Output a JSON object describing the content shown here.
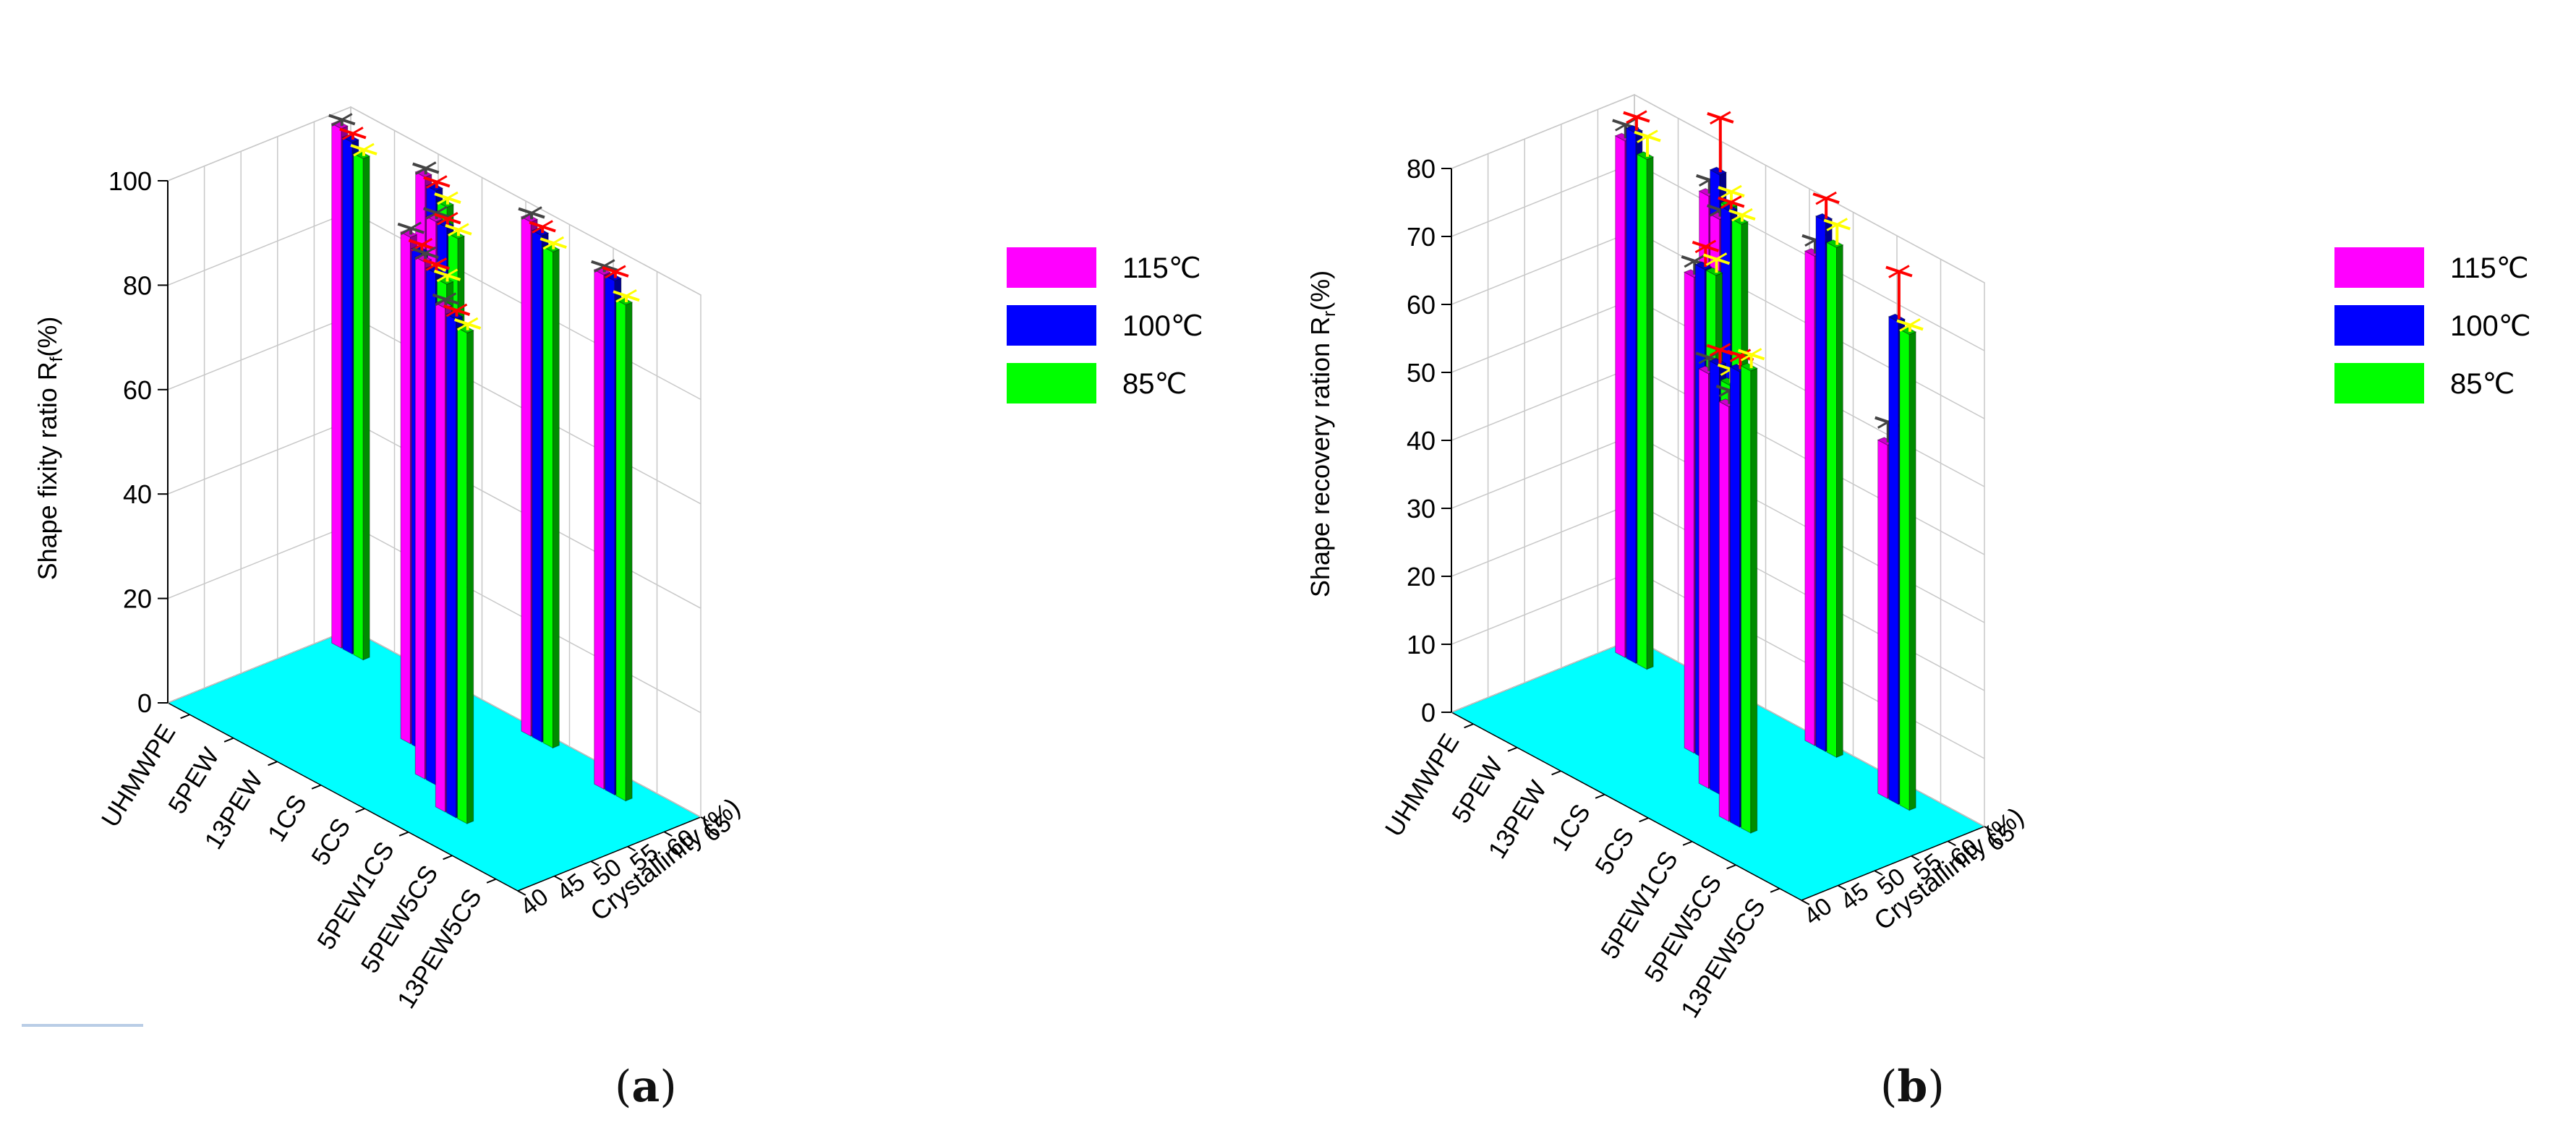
{
  "colors": {
    "floor": "#00ffff",
    "grid": "#c8c8c8",
    "axis": "#000000",
    "err_115": "#444444",
    "err_100": "#ff0000",
    "err_85": "#ffff00"
  },
  "chart_data": [
    {
      "type": "bar3d",
      "caption_label": "a",
      "zlabel": "Shape fixity ratio R_f(%)",
      "zlabel_main": "Shape fixity ratio R",
      "zlabel_sub": "f",
      "zlabel_tail": "(%)",
      "zlim": [
        0,
        100
      ],
      "zticks": [
        "0",
        "20",
        "40",
        "60",
        "80",
        "100"
      ],
      "categories": [
        "UHMWPE",
        "5PEW",
        "13PEW",
        "1CS",
        "5CS",
        "5PEW1CS",
        "5PEW5CS",
        "13PEW5CS"
      ],
      "ylabel": "Crystallinity (%)",
      "ylim": [
        40,
        65
      ],
      "yticks": [
        "40",
        "45",
        "50",
        "55",
        "60",
        "65"
      ],
      "legend": [
        {
          "label": "115℃",
          "color": "#ff00ff"
        },
        {
          "label": "100℃",
          "color": "#0000ff"
        },
        {
          "label": "85℃",
          "color": "#00ff00"
        }
      ],
      "groups": [
        {
          "cat": 0,
          "cryst": 61.5,
          "values": [
            99.5,
            98,
            96
          ]
        },
        {
          "cat": 2,
          "cryst": 61.0,
          "values": [
            99.5,
            98,
            96
          ]
        },
        {
          "cat": 3,
          "cryst": 53.0,
          "values": [
            97,
            95,
            92
          ]
        },
        {
          "cat": 3,
          "cryst": 56.5,
          "values": [
            98,
            98,
            97
          ]
        },
        {
          "cat": 4,
          "cryst": 49.0,
          "values": [
            99,
            98,
            97
          ]
        },
        {
          "cat": 4,
          "cryst": 63.5,
          "values": [
            98.5,
            97,
            95
          ]
        },
        {
          "cat": 5,
          "cryst": 45.8,
          "values": [
            96.5,
            95.5,
            94
          ]
        },
        {
          "cat": 6,
          "cryst": 61.5,
          "values": [
            98.5,
            98.5,
            95
          ]
        }
      ]
    },
    {
      "type": "bar3d",
      "caption_label": "b",
      "zlabel": "Shape recovery ration R_r(%)",
      "zlabel_main": "Shape recovery ration R",
      "zlabel_sub": "r",
      "zlabel_tail": "(%)",
      "zlim": [
        0,
        80
      ],
      "zticks": [
        "0",
        "10",
        "20",
        "30",
        "40",
        "50",
        "60",
        "70",
        "80"
      ],
      "categories": [
        "UHMWPE",
        "5PEW",
        "13PEW",
        "1CS",
        "5CS",
        "5PEW1CS",
        "5PEW5CS",
        "13PEW5CS"
      ],
      "ylabel": "Crystallinity (%)",
      "ylim": [
        40,
        65
      ],
      "yticks": [
        "40",
        "45",
        "50",
        "55",
        "60",
        "65"
      ],
      "legend": [
        {
          "label": "115℃",
          "color": "#ff00ff"
        },
        {
          "label": "100℃",
          "color": "#0000ff"
        },
        {
          "label": "85℃",
          "color": "#00ff00"
        }
      ],
      "groups": [
        {
          "cat": 0,
          "cryst": 61.5,
          "values": [
            76,
            78,
            75
          ],
          "errors": [
            2,
            2,
            3
          ]
        },
        {
          "cat": 2,
          "cryst": 61.0,
          "values": [
            75,
            79,
            75
          ],
          "errors": [
            2,
            8,
            2
          ]
        },
        {
          "cat": 3,
          "cryst": 53.0,
          "values": [
            70,
            72,
            72
          ],
          "errors": [
            2,
            3,
            2
          ]
        },
        {
          "cat": 3,
          "cryst": 56.5,
          "values": [
            77,
            79,
            78
          ],
          "errors": [
            1,
            1,
            1
          ]
        },
        {
          "cat": 4,
          "cryst": 49.0,
          "values": [
            61,
            63,
            61
          ],
          "errors": [
            2,
            2,
            2
          ]
        },
        {
          "cat": 4,
          "cryst": 63.5,
          "values": [
            72,
            78,
            75
          ],
          "errors": [
            2,
            3,
            3
          ]
        },
        {
          "cat": 5,
          "cryst": 45.8,
          "values": [
            61,
            67,
            68
          ],
          "errors": [
            2,
            2,
            2
          ]
        },
        {
          "cat": 6,
          "cryst": 61.5,
          "values": [
            52,
            71,
            70
          ],
          "errors": [
            3,
            7,
            1
          ]
        }
      ]
    }
  ]
}
